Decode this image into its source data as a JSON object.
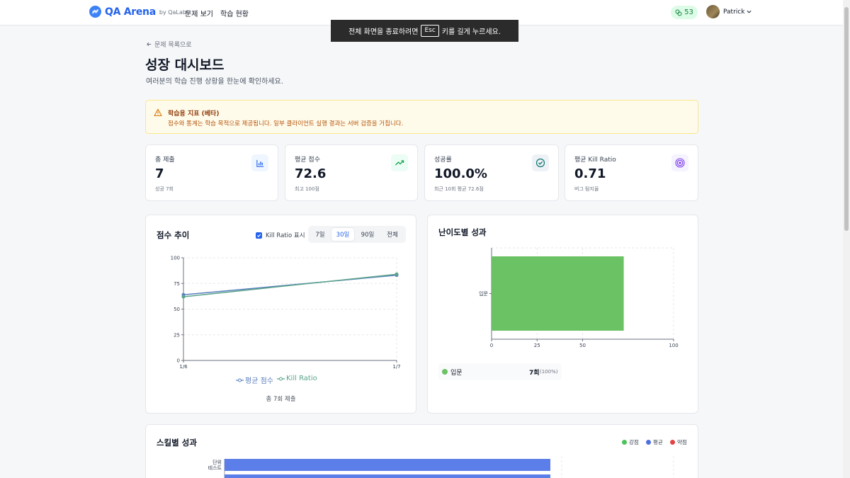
{
  "nav": {
    "brand_name": "QA Arena",
    "brand_by": "by QaLabs",
    "links": [
      "문제 보기",
      "학습 현황"
    ],
    "points": "53",
    "user_name": "Patrick"
  },
  "toast": {
    "before": "전체 화면을 종료하려면",
    "key": "Esc",
    "after": "키를 길게 누르세요."
  },
  "header": {
    "back_label": "문제 목록으로",
    "title": "성장 대시보드",
    "subtitle": "여러분의 학습 진행 상황을 한눈에 확인하세요."
  },
  "notice": {
    "title": "학습용 지표 (베타)",
    "text": "점수와 통계는 학습 목적으로 제공됩니다. 일부 클라이언트 실행 결과는 서버 검증을 거칩니다."
  },
  "stats": [
    {
      "label": "총 제출",
      "value": "7",
      "sub": "성공 7회",
      "icon": "bar-chart-icon"
    },
    {
      "label": "평균 점수",
      "value": "72.6",
      "sub": "최고 100점",
      "icon": "trending-up-icon"
    },
    {
      "label": "성공률",
      "value": "100.0%",
      "sub": "최근 10회 평균 72.6점",
      "icon": "check-circle-icon"
    },
    {
      "label": "평균 Kill Ratio",
      "value": "0.71",
      "sub": "버그 탐지율",
      "icon": "target-icon"
    }
  ],
  "score_trend": {
    "title": "점수 추이",
    "toggle_label": "Kill Ratio 표시",
    "ranges": [
      "7일",
      "30일",
      "90일",
      "전체"
    ],
    "active_range": "30일",
    "total_label": "총 7회 제출"
  },
  "difficulty": {
    "title": "난이도별 성과",
    "legend": [
      {
        "name": "입문",
        "count": "7회",
        "pct": "(100%)"
      }
    ]
  },
  "skills": {
    "title": "스킬별 성과",
    "legend": [
      "강점",
      "평균",
      "약점"
    ],
    "first_label_lines": [
      "단위",
      "테스트"
    ]
  },
  "colors": {
    "avg_line": "#5b7fbf",
    "kill_line": "#5aa38a",
    "difficulty_bar": "#6ac264",
    "skill_bar": "#5b7ee8",
    "strong": "#4cc25a",
    "average": "#4f6fe0",
    "weak": "#e04444"
  },
  "chart_data": [
    {
      "type": "line",
      "x": [
        "1/6",
        "1/7"
      ],
      "series": [
        {
          "name": "평균 점수",
          "values": [
            64,
            83
          ]
        },
        {
          "name": "Kill Ratio",
          "values": [
            62,
            84
          ]
        }
      ],
      "yticks": [
        0,
        25,
        50,
        75,
        100
      ],
      "ylim": [
        0,
        100
      ],
      "grid": true,
      "legend": "bottom"
    },
    {
      "type": "bar",
      "orientation": "horizontal",
      "categories": [
        "입문"
      ],
      "values": [
        72.6
      ],
      "xticks": [
        0,
        25,
        50,
        100
      ],
      "xlim": [
        0,
        100
      ],
      "grid": true
    }
  ]
}
